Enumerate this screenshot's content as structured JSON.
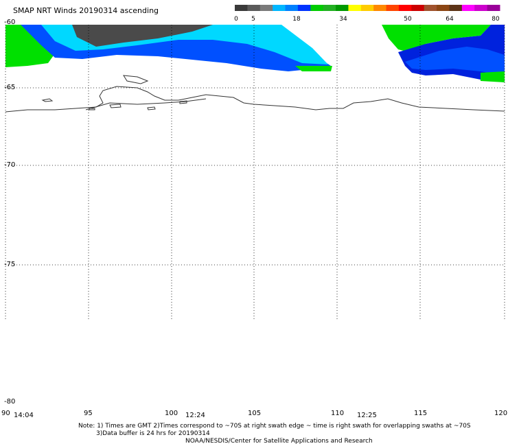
{
  "title": "SMAP NRT Winds 20190314 ascending",
  "colorbar": {
    "labels": [
      "0",
      "5",
      "18",
      "34",
      "50",
      "64",
      "80"
    ],
    "colors": [
      "#3a3a3a",
      "#5a5a5a",
      "#7a7a7a",
      "#00b7ff",
      "#0080ff",
      "#0033ff",
      "#00cc00",
      "#22b022",
      "#009900",
      "#ffff00",
      "#ffcc00",
      "#ff8800",
      "#ff4400",
      "#ff0000",
      "#cc0000",
      "#a0522d",
      "#8b4513",
      "#5c3317",
      "#ff00ff",
      "#cc00cc",
      "#990099"
    ]
  },
  "lat_labels": [
    "-60",
    "-65",
    "-70",
    "-75",
    "-80"
  ],
  "lon_labels": [
    "90",
    "95",
    "100",
    "105",
    "110",
    "115",
    "120"
  ],
  "times": [
    "14:04",
    "12:24",
    "12:25"
  ],
  "notes": {
    "line1": "Note: 1) Times are GMT 2)Times correspond to ~70S at right swath edge ~ time is right swath for overlapping swaths at ~70S",
    "line2": "3)Data buffer is 24 hrs for 20190314",
    "line3": "NOAA/NESDIS/Center for Satellite Applications and Research"
  },
  "wind_colors": {
    "calm": "#4a4a4a",
    "light": "#00d8ff",
    "moderate": "#0050ff",
    "strong": "#0022dd",
    "fresh": "#00e000"
  }
}
